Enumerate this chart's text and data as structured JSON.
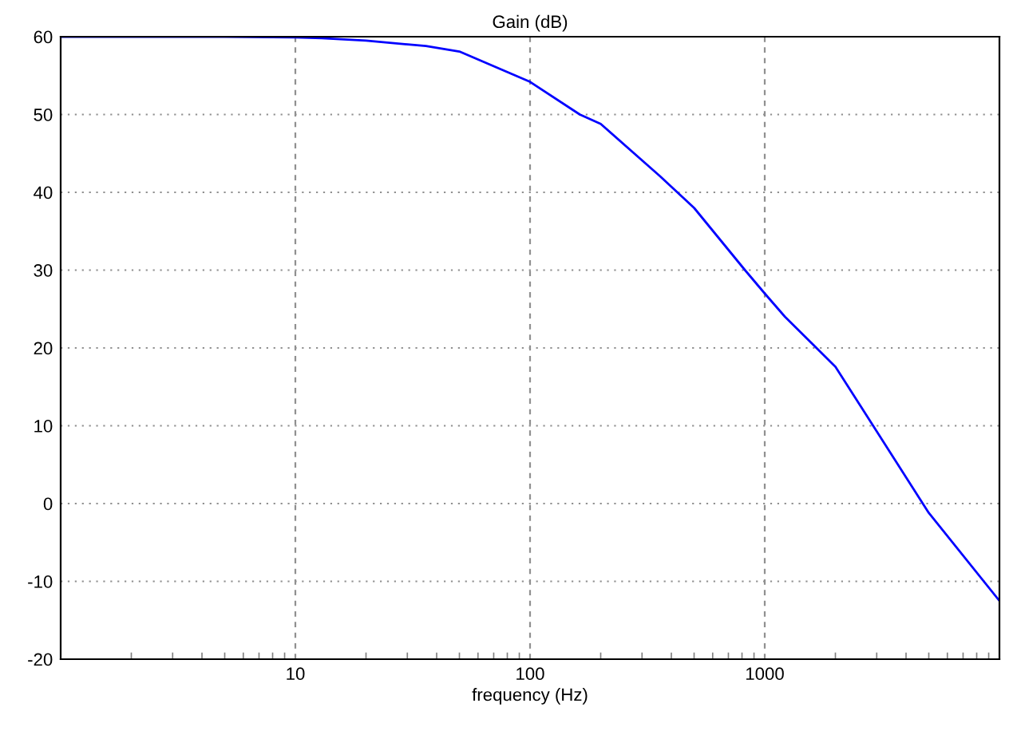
{
  "chart_data": {
    "type": "line",
    "title": "Gain (dB)",
    "xlabel": "frequency (Hz)",
    "log": "x",
    "xlim": [
      1,
      10000
    ],
    "xticks": [
      10,
      100,
      1000
    ],
    "ylim": [
      -20,
      60
    ],
    "yticks": [
      -20,
      -10,
      0,
      10,
      20,
      30,
      40,
      50,
      60
    ],
    "grid": true,
    "legend": false,
    "marker": "none",
    "line_style": "solid",
    "series": [
      {
        "color": "#0000ff",
        "x": [
          1,
          5,
          10,
          13,
          20,
          36,
          50,
          100,
          163,
          200,
          357,
          500,
          824,
          1000,
          1220,
          2000,
          5000,
          10000
        ],
        "values": [
          60,
          60,
          59.9,
          59.8,
          59.5,
          58.8,
          58.1,
          54.2,
          50,
          48.8,
          42.1,
          38,
          30,
          27,
          24,
          17.6,
          -1.2,
          -12.5
        ]
      }
    ]
  }
}
